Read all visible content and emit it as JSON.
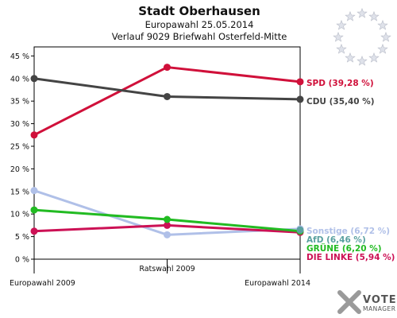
{
  "header": {
    "title": "Stadt Oberhausen",
    "subtitle": "Europawahl 25.05.2014",
    "subtitle2": "Verlauf 9029 Briefwahl Osterfeld-Mitte"
  },
  "logo": {
    "line1": "VOTE",
    "line2": "MANAGER"
  },
  "chart_data": {
    "type": "line",
    "title": "Stadt Oberhausen",
    "subtitle": "Europawahl 25.05.2014 / Verlauf 9029 Briefwahl Osterfeld-Mitte",
    "xlabel": "",
    "ylabel": "",
    "categories": [
      "Europawahl 2009",
      "Ratswahl 2009",
      "Europawahl 2014"
    ],
    "y_ticks": [
      "0 %",
      "5 %",
      "10 %",
      "15 %",
      "20 %",
      "25 %",
      "30 %",
      "35 %",
      "40 %",
      "45 %"
    ],
    "ylim": [
      0,
      47
    ],
    "grid": false,
    "series": [
      {
        "name": "SPD",
        "label": "SPD (39,28 %)",
        "color": "#d0103a",
        "values": [
          27.5,
          42.5,
          39.28
        ]
      },
      {
        "name": "CDU",
        "label": "CDU (35,40 %)",
        "color": "#444444",
        "values": [
          40.0,
          36.0,
          35.4
        ]
      },
      {
        "name": "Sonstige",
        "label": "Sonstige (6,72 %)",
        "color": "#b0c0e8",
        "values": [
          15.2,
          5.4,
          6.72
        ]
      },
      {
        "name": "AfD",
        "label": "AfD (6,46 %)",
        "color": "#5aa0a0",
        "values": [
          null,
          null,
          6.46
        ]
      },
      {
        "name": "GRÜNE",
        "label": "GRÜNE (6,20 %)",
        "color": "#22bb22",
        "values": [
          10.9,
          8.8,
          6.2
        ]
      },
      {
        "name": "DIE LINKE",
        "label": "DIE LINKE (5,94 %)",
        "color": "#cc1155",
        "values": [
          6.2,
          7.5,
          5.94
        ]
      }
    ]
  }
}
